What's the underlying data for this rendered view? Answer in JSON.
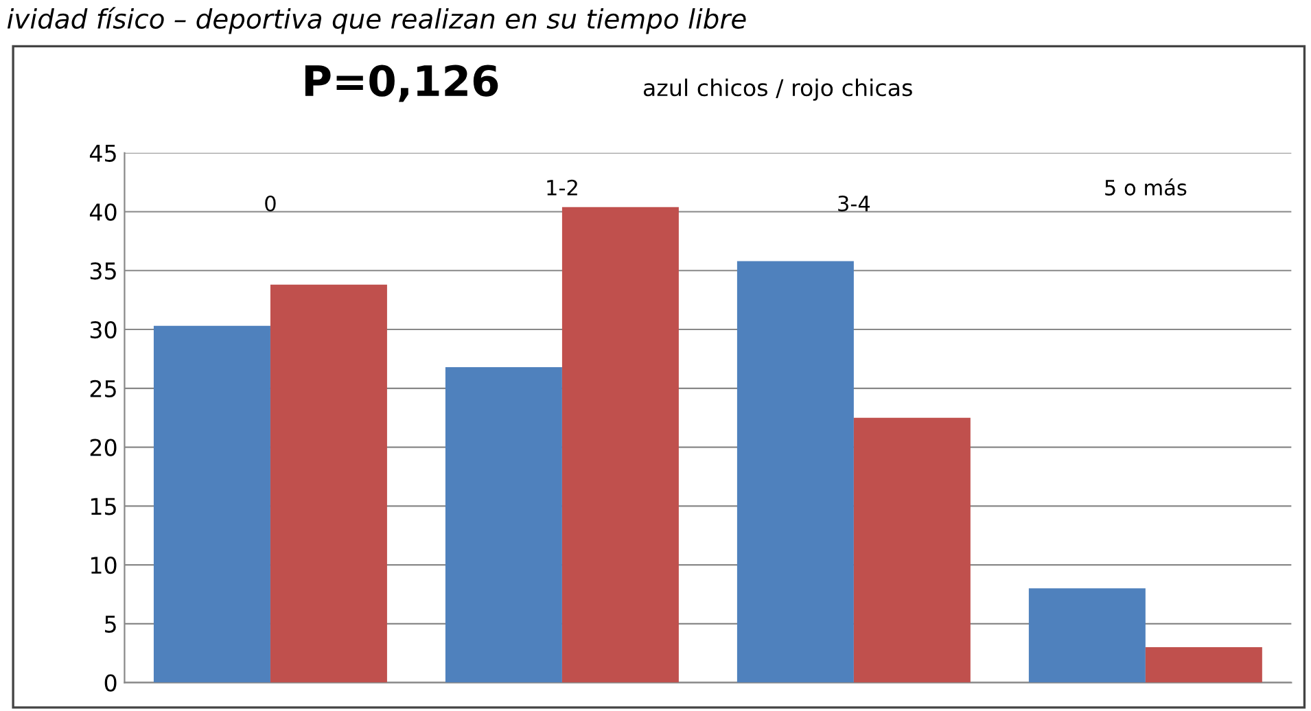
{
  "chart_data": {
    "type": "bar",
    "title": "P=0,126",
    "subtitle": "azul chicos / rojo chicas",
    "annotations": [
      "ividad físico – deportiva que realizan en su tiempo libre"
    ],
    "categories": [
      "0",
      "1-2",
      "3-4",
      "5 o más"
    ],
    "series": [
      {
        "color": "#4f81bd",
        "values": [
          30.3,
          26.8,
          35.8,
          8.0
        ]
      },
      {
        "color": "#c0504d",
        "values": [
          33.8,
          40.4,
          22.5,
          3.0
        ]
      }
    ],
    "ylim": [
      0,
      45
    ],
    "yticks": [
      0,
      5,
      10,
      15,
      20,
      25,
      30,
      35,
      40,
      45
    ],
    "grid": "y",
    "legend": false
  }
}
